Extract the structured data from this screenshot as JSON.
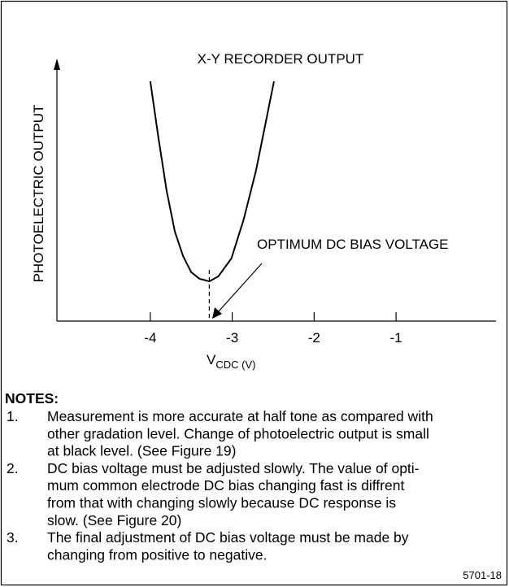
{
  "chart_data": {
    "type": "line",
    "title": "X-Y RECORDER OUTPUT",
    "y_label": "PHOTOELECTRIC OUTPUT",
    "x_label": "V",
    "x_label_sub": "CDC (V)",
    "x": [
      -4.0,
      -3.9,
      -3.8,
      -3.7,
      -3.6,
      -3.5,
      -3.4,
      -3.28,
      -3.17,
      -3.01,
      -2.86,
      -2.71,
      -2.61,
      -2.49
    ],
    "series": [
      {
        "color": "#000000",
        "values": [
          92.2,
          70.3,
          50.0,
          34.4,
          25.0,
          18.8,
          16.3,
          15.3,
          17.2,
          24.1,
          39.1,
          57.8,
          73.4,
          92.2
        ]
      }
    ],
    "xlim": [
      -5.14,
      0.22
    ],
    "ylim": [
      0,
      100
    ],
    "xticks": [
      -4,
      -3,
      -2,
      -1
    ],
    "annotation": {
      "text": "OPTIMUM DC BIAS VOLTAGE",
      "x": -3.28
    },
    "notes": {
      "title": "NOTES:",
      "items": [
        {
          "number": "1.",
          "lines": [
            "Measurement is more accurate at half tone as compared with",
            "other gradation level. Change of photoelectric output is small",
            "at black level. (See Figure 19)"
          ]
        },
        {
          "number": "2.",
          "lines": [
            "DC bias voltage must be adjusted slowly. The value of opti-",
            "mum common electrode DC bias changing fast is diffrent",
            "from that with changing slowly because DC response is",
            "slow. (See Figure 20)"
          ]
        },
        {
          "number": "3.",
          "lines": [
            "The final adjustment of DC bias voltage must be made by",
            "changing from positive to negative."
          ]
        }
      ]
    },
    "figure_id": "5701-18"
  }
}
